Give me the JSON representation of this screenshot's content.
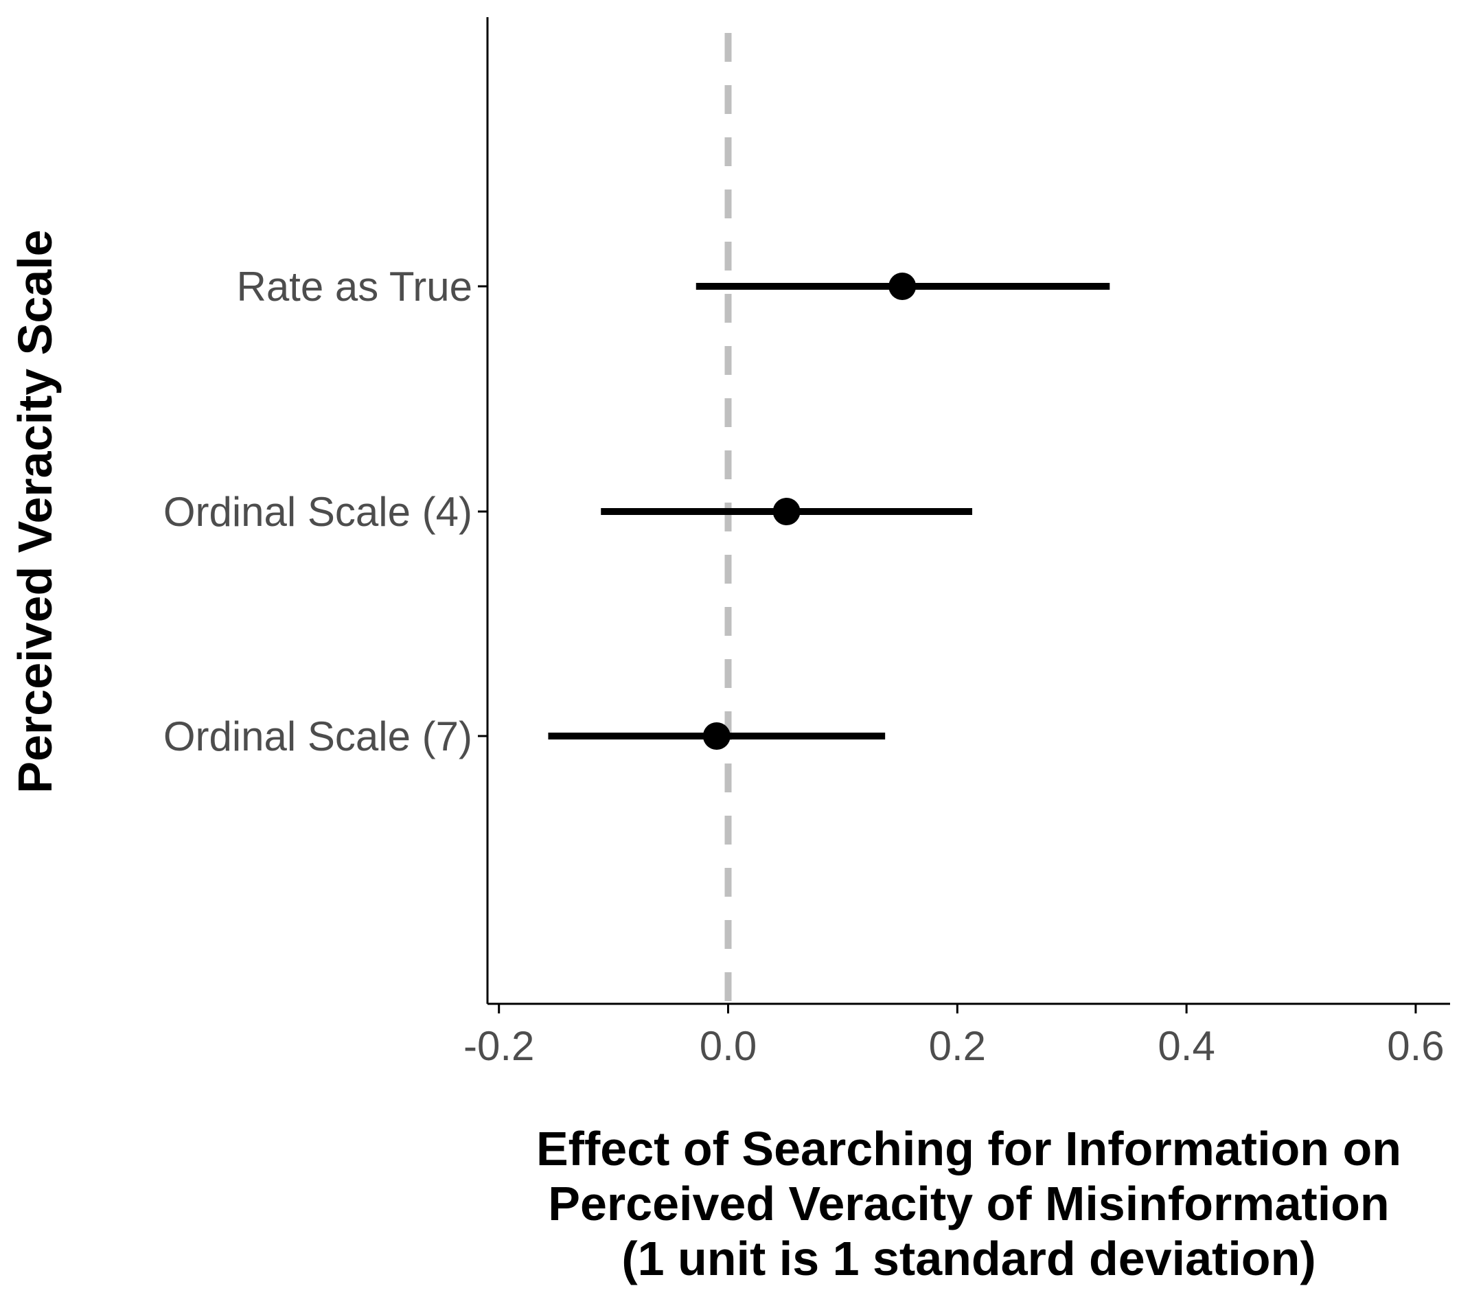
{
  "chart_data": {
    "type": "scatter",
    "subtype": "point-range",
    "title": "",
    "xlabel_lines": [
      "Effect of Searching for Information on",
      "Perceived Veracity of Misinformation",
      "(1 unit is 1 standard deviation)"
    ],
    "ylabel": "Perceived Veracity Scale",
    "xlim": [
      -0.21,
      0.63
    ],
    "x_ticks": [
      -0.2,
      0.0,
      0.2,
      0.4,
      0.6
    ],
    "x_tick_labels": [
      "-0.2",
      "0.0",
      "0.2",
      "0.4",
      "0.6"
    ],
    "categories": [
      "Rate as True",
      "Ordinal Scale (4)",
      "Ordinal Scale (7)"
    ],
    "points": [
      {
        "label": "Rate as True",
        "estimate": 0.152,
        "lower": -0.028,
        "upper": 0.333
      },
      {
        "label": "Ordinal Scale (4)",
        "estimate": 0.051,
        "lower": -0.111,
        "upper": 0.213
      },
      {
        "label": "Ordinal Scale (7)",
        "estimate": -0.01,
        "lower": -0.157,
        "upper": 0.137
      }
    ],
    "reference_line": {
      "x": 0.0,
      "style": "dashed",
      "color": "#bfbfbf"
    },
    "grid": false,
    "legend": "none",
    "colors": {
      "points": "#000000",
      "axis": "#000000",
      "tick_text": "#4d4d4d"
    }
  }
}
